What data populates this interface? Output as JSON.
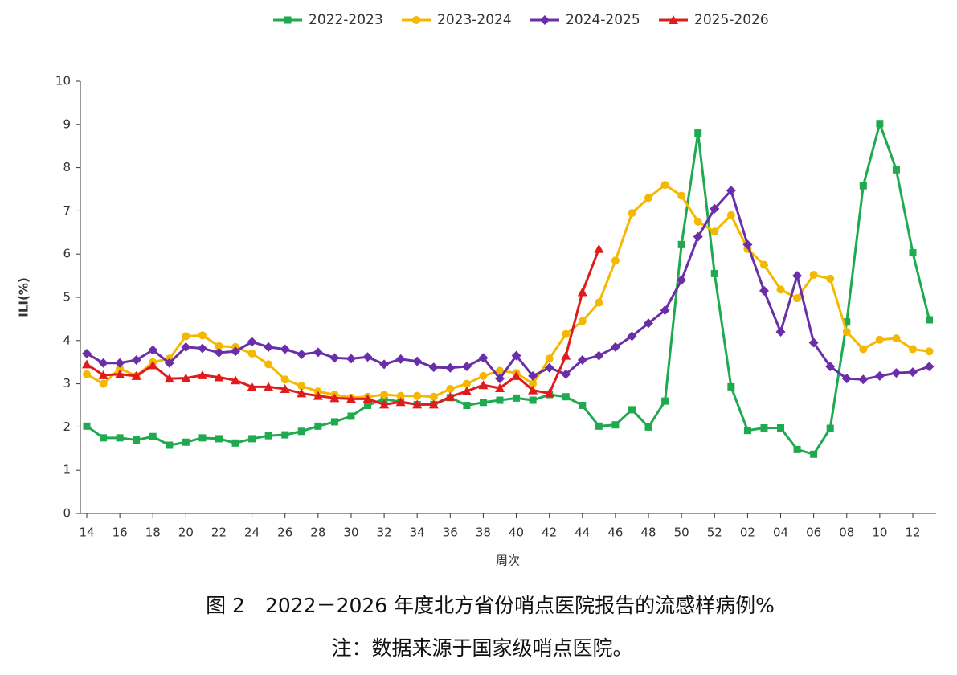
{
  "chart_data": {
    "type": "line",
    "legend": "top",
    "ylabel": "ILI(%)",
    "xlabel": "周次",
    "caption": "图 2　2022－2026 年度北方省份哨点医院报告的流感样病例%",
    "note": "注：数据来源于国家级哨点医院。",
    "ylim": [
      0,
      10
    ],
    "yticks": [
      0,
      1,
      2,
      3,
      4,
      5,
      6,
      7,
      8,
      9,
      10
    ],
    "categories": [
      "14",
      null,
      "16",
      null,
      "18",
      null,
      "20",
      null,
      "22",
      null,
      "24",
      null,
      "26",
      null,
      "28",
      null,
      "30",
      null,
      "32",
      null,
      "34",
      null,
      "36",
      null,
      "38",
      null,
      "40",
      null,
      "42",
      null,
      "44",
      null,
      "46",
      null,
      "48",
      null,
      "50",
      null,
      "52",
      null,
      "02",
      null,
      "04",
      null,
      "06",
      null,
      "08",
      null,
      "10",
      null,
      "12",
      null
    ],
    "series": [
      {
        "name": "2022-2023",
        "color": "#1faa4f",
        "marker": "square",
        "values": [
          2.02,
          1.75,
          1.75,
          1.7,
          1.78,
          1.58,
          1.65,
          1.75,
          1.73,
          1.63,
          1.73,
          1.8,
          1.82,
          1.9,
          2.02,
          2.12,
          2.25,
          2.5,
          2.65,
          2.58,
          2.52,
          2.52,
          2.68,
          2.5,
          2.57,
          2.62,
          2.67,
          2.62,
          2.75,
          2.7,
          2.5,
          2.02,
          2.05,
          2.4,
          2.0,
          2.6,
          6.22,
          8.8,
          5.55,
          2.93,
          1.92,
          1.98,
          1.98,
          1.48,
          1.37,
          1.97,
          4.43,
          7.58,
          9.02,
          7.95,
          6.03,
          4.48
        ]
      },
      {
        "name": "2023-2024",
        "color": "#f5b800",
        "marker": "circle",
        "values": [
          3.22,
          3.0,
          3.35,
          3.18,
          3.5,
          3.58,
          4.1,
          4.12,
          3.87,
          3.85,
          3.7,
          3.45,
          3.1,
          2.95,
          2.82,
          2.75,
          2.68,
          2.7,
          2.75,
          2.72,
          2.72,
          2.7,
          2.88,
          3.0,
          3.18,
          3.3,
          3.25,
          3.0,
          3.58,
          4.15,
          4.45,
          4.88,
          5.85,
          6.95,
          7.3,
          7.6,
          7.35,
          6.75,
          6.52,
          6.9,
          6.12,
          5.75,
          5.18,
          4.98,
          5.52,
          5.43,
          4.2,
          3.8,
          4.02,
          4.05,
          3.8,
          3.75
        ]
      },
      {
        "name": "2024-2025",
        "color": "#6a2ea8",
        "marker": "diamond",
        "values": [
          3.7,
          3.48,
          3.48,
          3.55,
          3.78,
          3.48,
          3.85,
          3.82,
          3.72,
          3.75,
          3.97,
          3.85,
          3.8,
          3.68,
          3.73,
          3.6,
          3.58,
          3.62,
          3.45,
          3.57,
          3.52,
          3.38,
          3.37,
          3.4,
          3.6,
          3.12,
          3.65,
          3.18,
          3.37,
          3.22,
          3.55,
          3.65,
          3.85,
          4.1,
          4.4,
          4.7,
          5.4,
          6.4,
          7.05,
          7.47,
          6.22,
          5.15,
          4.2,
          5.5,
          3.95,
          3.4,
          3.12,
          3.1,
          3.18,
          3.25,
          3.27,
          3.4
        ]
      },
      {
        "name": "2025-2026",
        "color": "#e01b1b",
        "marker": "triangle",
        "values": [
          3.45,
          3.2,
          3.22,
          3.18,
          3.43,
          3.12,
          3.13,
          3.2,
          3.15,
          3.08,
          2.93,
          2.93,
          2.88,
          2.78,
          2.72,
          2.67,
          2.65,
          2.65,
          2.52,
          2.58,
          2.52,
          2.52,
          2.7,
          2.83,
          2.97,
          2.9,
          3.18,
          2.85,
          2.78,
          3.65,
          5.12,
          6.12,
          null,
          null,
          null,
          null,
          null,
          null,
          null,
          null,
          null,
          null,
          null,
          null,
          null,
          null,
          null,
          null,
          null,
          null,
          null,
          null
        ]
      }
    ]
  }
}
